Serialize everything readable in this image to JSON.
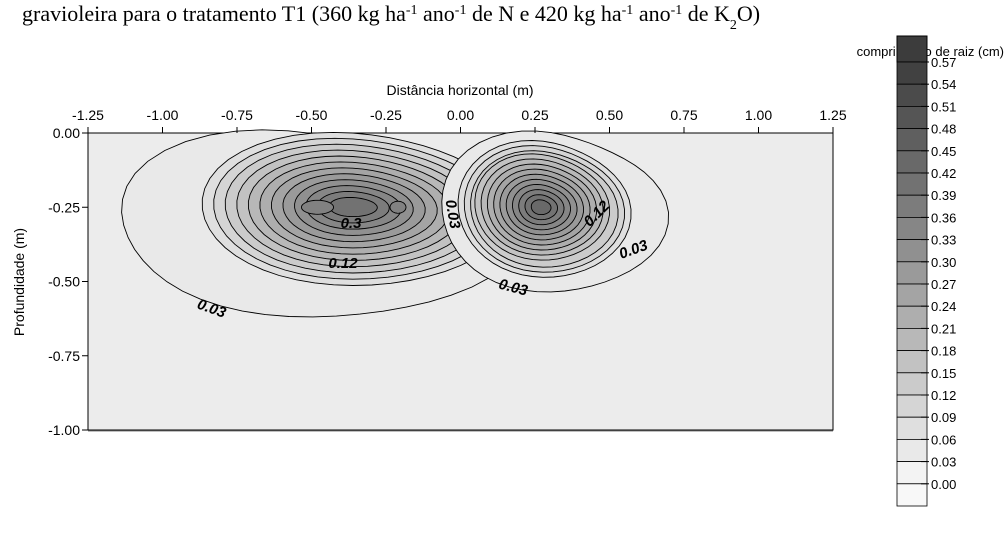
{
  "caption": "gravioleira para o tratamento T1 (360 kg ha-1 ano-1 de N e 420 kg ha-1 ano-1 de K2O)",
  "chart_data": {
    "type": "contour",
    "title": "",
    "xlabel": "Distância horizontal (m)",
    "ylabel": "Profundidade (m)",
    "xlim": [
      -1.25,
      1.25
    ],
    "ylim": [
      -1.0,
      0.0
    ],
    "x_ticks": [
      "-1.25",
      "-1.00",
      "-0.75",
      "-0.50",
      "-0.25",
      "0.00",
      "0.25",
      "0.50",
      "0.75",
      "1.00",
      "1.25"
    ],
    "y_ticks": [
      "0.00",
      "-0.25",
      "-0.50",
      "-0.75",
      "-1.00"
    ],
    "legend_title": "comprimento de raiz (cm)",
    "legend_levels": [
      "0.57",
      "0.54",
      "0.51",
      "0.48",
      "0.45",
      "0.42",
      "0.39",
      "0.36",
      "0.33",
      "0.30",
      "0.27",
      "0.24",
      "0.21",
      "0.18",
      "0.15",
      "0.12",
      "0.09",
      "0.06",
      "0.03",
      "0.00"
    ],
    "contour_labels": [
      "0.3",
      "0.12",
      "0.03",
      "0.03",
      "0.12",
      "0.03",
      "0.03"
    ],
    "peaks": [
      {
        "x": -0.5,
        "y": -0.25,
        "max": 0.36
      },
      {
        "x": -0.25,
        "y": -0.25,
        "max": 0.36
      },
      {
        "x": 0.27,
        "y": -0.25,
        "max": 0.42
      }
    ],
    "background_level": 0.03
  },
  "colors": {
    "low": "#f8f8f8",
    "high": "#3c3c3c",
    "line": "#000000",
    "frame_border": "#808080"
  }
}
